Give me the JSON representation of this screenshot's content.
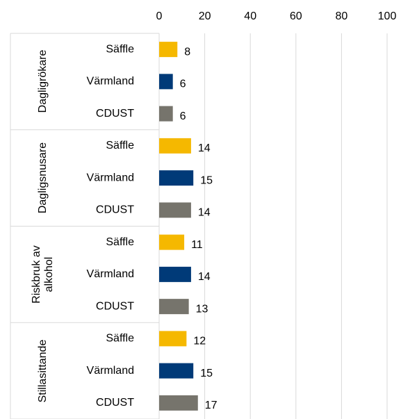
{
  "chart_data": {
    "type": "bar",
    "orientation": "horizontal",
    "categories": [
      "Dagligrökare",
      "Dagligsnusare",
      "Riskbruk av alkohol",
      "Stillasittande"
    ],
    "series": [
      {
        "name": "Säffle",
        "color": "#f5b800",
        "values": [
          8,
          14,
          11,
          12
        ]
      },
      {
        "name": "Värmland",
        "color": "#003a78",
        "values": [
          6,
          15,
          14,
          15
        ]
      },
      {
        "name": "CDUST",
        "color": "#76746c",
        "values": [
          6,
          14,
          13,
          17
        ]
      }
    ],
    "xlim": [
      0,
      100
    ],
    "xticks": [
      0,
      20,
      40,
      60,
      80,
      100
    ],
    "grid": true
  }
}
